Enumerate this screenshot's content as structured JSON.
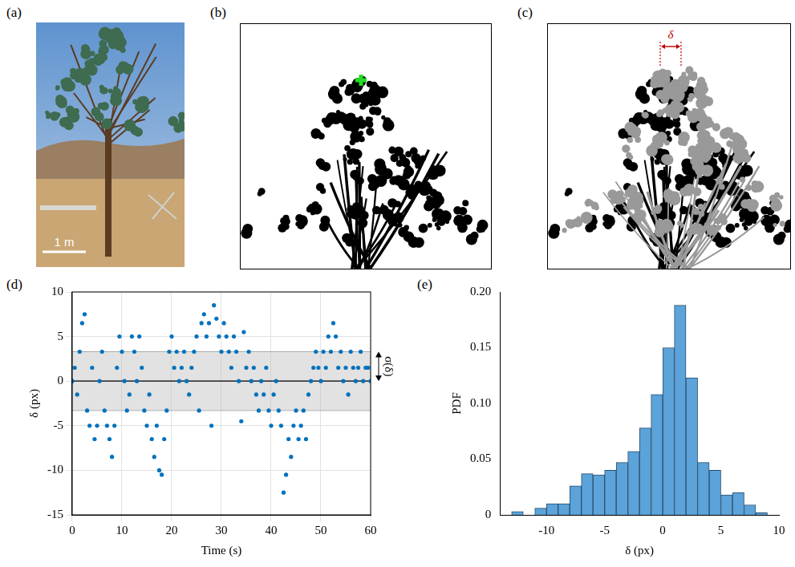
{
  "images": [
    {
      "panel": "(a)",
      "scale_bar": "1 m"
    },
    {
      "panel": "(b)"
    },
    {
      "panel": "(c)",
      "annotation": "δ"
    }
  ],
  "chart_data": [
    {
      "panel": "(d)",
      "type": "scatter",
      "x_label": "Time (s)",
      "y_label": "δ (px)",
      "x": [
        0,
        0.5,
        1,
        1.5,
        2,
        2.5,
        3,
        3.5,
        4,
        4.5,
        5,
        5.5,
        6,
        6.5,
        7,
        7.5,
        8,
        8.5,
        9,
        9.5,
        10,
        10.5,
        11,
        11.5,
        12,
        12.5,
        13,
        13.5,
        14,
        14.5,
        15,
        15.5,
        16,
        16.5,
        17,
        17.5,
        18,
        18.5,
        19,
        19.5,
        20,
        20.5,
        21,
        21.5,
        22,
        22.5,
        23,
        23.5,
        24,
        24.5,
        25,
        25.5,
        26,
        26.5,
        27,
        27.5,
        28,
        28.5,
        29,
        29.5,
        30,
        30.5,
        31,
        31.5,
        32,
        32.5,
        33,
        33.5,
        34,
        34.5,
        35,
        35.5,
        36,
        36.5,
        37,
        37.5,
        38,
        38.5,
        39,
        39.5,
        40,
        40.5,
        41,
        41.5,
        42,
        42.5,
        43,
        43.5,
        44,
        44.5,
        45,
        45.5,
        46,
        46.5,
        47,
        47.5,
        48,
        48.5,
        49,
        49.5,
        50,
        50.5,
        51,
        51.5,
        52,
        52.5,
        53,
        53.5,
        54,
        54.5,
        55,
        55.5,
        56,
        56.5,
        57,
        57.5,
        58,
        58.5,
        59,
        59.5,
        60
      ],
      "values": [
        0,
        1.5,
        -1.5,
        3.3,
        6.5,
        7.5,
        -3.3,
        -5,
        1.5,
        -6.5,
        -5,
        0,
        3.3,
        -3.3,
        -5,
        -6.5,
        -8.5,
        -5,
        1.5,
        5,
        3.3,
        0,
        -3.3,
        -1.5,
        5,
        3.3,
        0,
        5,
        1.5,
        -3.3,
        -5,
        -1.5,
        -6.5,
        -8.5,
        -5,
        -10,
        -10.5,
        -6.5,
        -3.3,
        3.3,
        5,
        1.5,
        3.3,
        0,
        1.5,
        3.3,
        0,
        -1.5,
        1.5,
        3.3,
        5,
        -3.3,
        6.5,
        7.5,
        5,
        6.5,
        -5,
        8.5,
        7,
        5,
        3.3,
        6.5,
        5,
        3.3,
        1.5,
        5,
        3.3,
        0,
        -4.5,
        5.5,
        1.5,
        3.3,
        0,
        1.5,
        -1.5,
        -3.3,
        0,
        -1.5,
        1.5,
        -3.3,
        -5,
        -1.5,
        0,
        -3.3,
        -5,
        -12.5,
        -10.5,
        -6.5,
        -8.5,
        -5,
        -3.3,
        -6.5,
        -5,
        -3.3,
        -6.5,
        -1.5,
        0,
        1.5,
        3.3,
        1.5,
        0,
        3.3,
        1.5,
        5,
        3.3,
        6.5,
        5,
        1.5,
        3.3,
        0,
        1.5,
        -1.5,
        3.3,
        1.5,
        0,
        1.5,
        3.3,
        0,
        1.5,
        1.5,
        0
      ],
      "color": "#0072bd",
      "marker": "circle",
      "xlim": [
        0,
        60
      ],
      "xticks": [
        0,
        10,
        20,
        30,
        40,
        50,
        60
      ],
      "ylim": [
        -15,
        10
      ],
      "yticks": [
        -15,
        -10,
        -5,
        0,
        5,
        10
      ],
      "grid": true,
      "mean": 0,
      "sigma": 3.3,
      "sigma_label": "σ(δ)"
    },
    {
      "panel": "(e)",
      "type": "histogram",
      "x_label": "δ (px)",
      "y_label": "PDF",
      "bins": [
        -13,
        -12,
        -11,
        -10,
        -9,
        -8,
        -7,
        -6,
        -5,
        -4,
        -3,
        -2,
        -1,
        0,
        1,
        2,
        3,
        4,
        5,
        6,
        7,
        8,
        9
      ],
      "counts": [
        0.003,
        0,
        0.006,
        0.01,
        0.01,
        0.026,
        0.037,
        0.036,
        0.04,
        0.047,
        0.057,
        0.078,
        0.108,
        0.15,
        0.188,
        0.123,
        0.047,
        0.04,
        0.018,
        0.02,
        0.009,
        0.002
      ],
      "color": "#5ba3d9",
      "xlim": [
        -14,
        10
      ],
      "xticks": [
        -10,
        -5,
        0,
        5,
        10
      ],
      "ylim": [
        0,
        0.2
      ],
      "yticks": [
        0,
        0.05,
        {
          "value": 0.1,
          "label": "0.10"
        },
        0.15,
        {
          "value": 0.2,
          "label": "0.20"
        }
      ],
      "grid": false
    }
  ]
}
